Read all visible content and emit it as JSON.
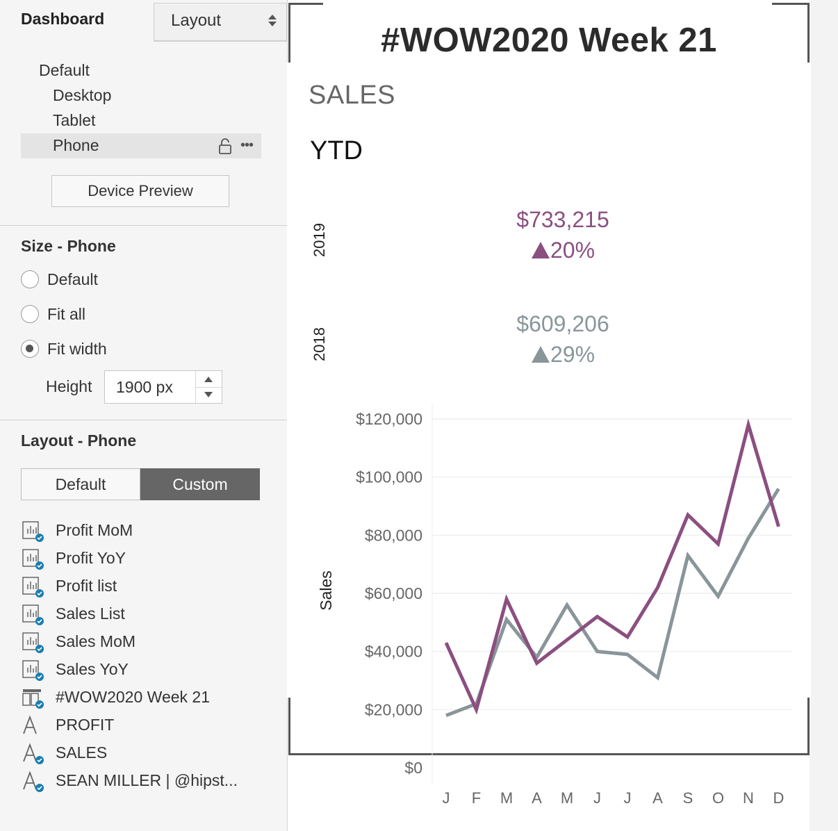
{
  "side": {
    "tabs": {
      "dashboard": "Dashboard",
      "layout": "Layout"
    },
    "devices": [
      "Default",
      "Desktop",
      "Tablet",
      "Phone"
    ],
    "device_preview": "Device Preview",
    "size": {
      "title": "Size - Phone",
      "options": [
        "Default",
        "Fit all",
        "Fit width"
      ],
      "selected": "Fit width",
      "height_label": "Height",
      "height_value": "1900 px"
    },
    "layout": {
      "title": "Layout - Phone",
      "segments": [
        "Default",
        "Custom"
      ],
      "selected": "Custom",
      "items": [
        {
          "label": "Profit MoM",
          "icon": "worksheet-icon"
        },
        {
          "label": "Profit YoY",
          "icon": "worksheet-icon"
        },
        {
          "label": "Profit list",
          "icon": "worksheet-icon"
        },
        {
          "label": "Sales List",
          "icon": "worksheet-icon"
        },
        {
          "label": "Sales MoM",
          "icon": "worksheet-icon"
        },
        {
          "label": "Sales YoY",
          "icon": "worksheet-icon"
        },
        {
          "label": "#WOW2020 Week 21",
          "icon": "container-icon"
        },
        {
          "label": "PROFIT",
          "icon": "text-object-icon"
        },
        {
          "label": "SALES",
          "icon": "text-object-icon"
        },
        {
          "label": "SEAN MILLER | @hipst...",
          "icon": "text-object-icon"
        }
      ]
    }
  },
  "dashboard": {
    "title": "#WOW2020 Week 21",
    "section": "SALES",
    "subtitle": "YTD",
    "kpis": [
      {
        "year": "2019",
        "value": "$733,215",
        "change": "20%",
        "color": "#8b4f80"
      },
      {
        "year": "2018",
        "value": "$609,206",
        "change": "29%",
        "color": "#8a959a"
      }
    ]
  },
  "colors": {
    "accent_2019": "#8b4f80",
    "accent_2018": "#8a959a",
    "selected_segment": "#666666"
  },
  "chart_data": {
    "type": "line",
    "categories": [
      "J",
      "F",
      "M",
      "A",
      "M",
      "J",
      "J",
      "A",
      "S",
      "O",
      "N",
      "D"
    ],
    "ylabel": "Sales",
    "ylim": [
      0,
      120000
    ],
    "yticks": [
      "$0",
      "$20,000",
      "$40,000",
      "$60,000",
      "$80,000",
      "$100,000",
      "$120,000"
    ],
    "ytick_values": [
      0,
      20000,
      40000,
      60000,
      80000,
      100000,
      120000
    ],
    "grid": true,
    "series": [
      {
        "values": [
          43000,
          20000,
          58000,
          36000,
          44000,
          52000,
          45000,
          62000,
          87000,
          77000,
          118000,
          83000
        ],
        "color": "#8b4f80"
      },
      {
        "values": [
          18000,
          22000,
          51000,
          38000,
          56000,
          40000,
          39000,
          31000,
          73000,
          59000,
          79000,
          96000
        ],
        "color": "#8a959a"
      }
    ]
  }
}
